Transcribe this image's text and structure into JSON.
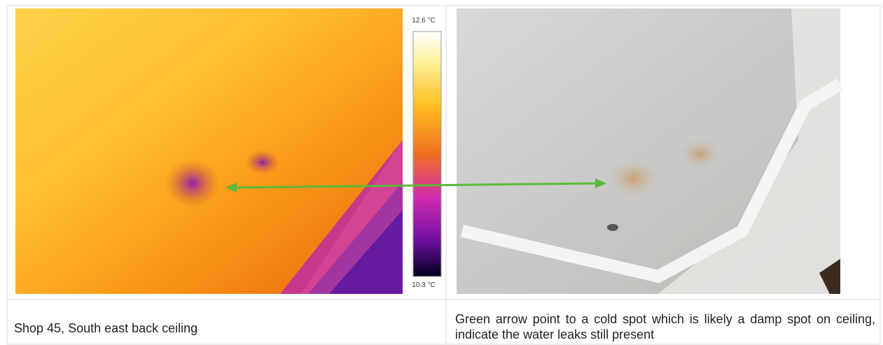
{
  "thermal_image": {
    "scale_max": "12.6 °C",
    "scale_min": "10.3 °C"
  },
  "table": {
    "rows": [
      [
        "Shop 45, South east back ceiling",
        "Green arrow point to a cold spot which is likely a damp spot on ceiling, indicate the water leaks still present"
      ]
    ]
  }
}
